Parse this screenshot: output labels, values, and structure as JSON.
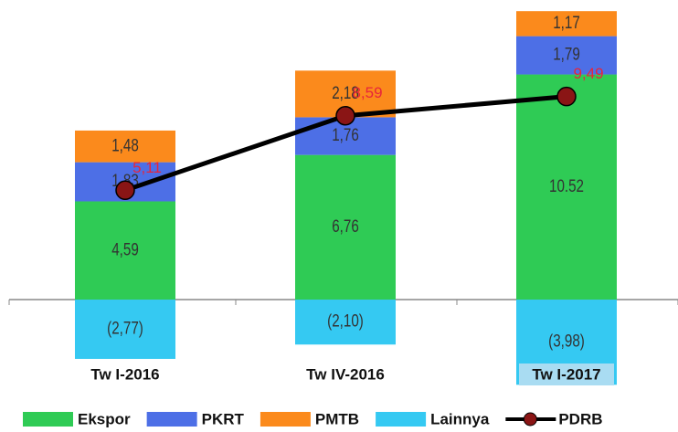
{
  "chart_data": {
    "type": "stacked_bar_line",
    "categories": [
      "Tw I-2016",
      "Tw IV-2016",
      "Tw I-2017"
    ],
    "series": [
      {
        "name": "Ekspor",
        "color": "#2fcb55",
        "values": [
          4.59,
          6.76,
          10.52
        ],
        "value_labels": [
          "4,59",
          "6,76",
          "10.52"
        ]
      },
      {
        "name": "PKRT",
        "color": "#4d6fe6",
        "values": [
          1.83,
          1.76,
          1.79
        ],
        "value_labels": [
          "1,83",
          "1,76",
          "1,79"
        ]
      },
      {
        "name": "PMTB",
        "color": "#fb8a1c",
        "values": [
          1.48,
          2.18,
          1.17
        ],
        "value_labels": [
          "1,48",
          "2,18",
          "1,17"
        ]
      },
      {
        "name": "Lainnya",
        "color": "#35c9f2",
        "values": [
          -2.77,
          -2.1,
          -3.98
        ],
        "value_labels": [
          "(2,77)",
          "(2,10)",
          "(3,98)"
        ]
      },
      {
        "name": "PDRB",
        "type": "line",
        "color": "#000000",
        "marker_color": "#8a1515",
        "values": [
          5.11,
          8.59,
          9.49
        ],
        "value_labels": [
          "5,11",
          "8,59",
          "9,49"
        ]
      }
    ],
    "ylim": [
      -4.3,
      14
    ]
  }
}
